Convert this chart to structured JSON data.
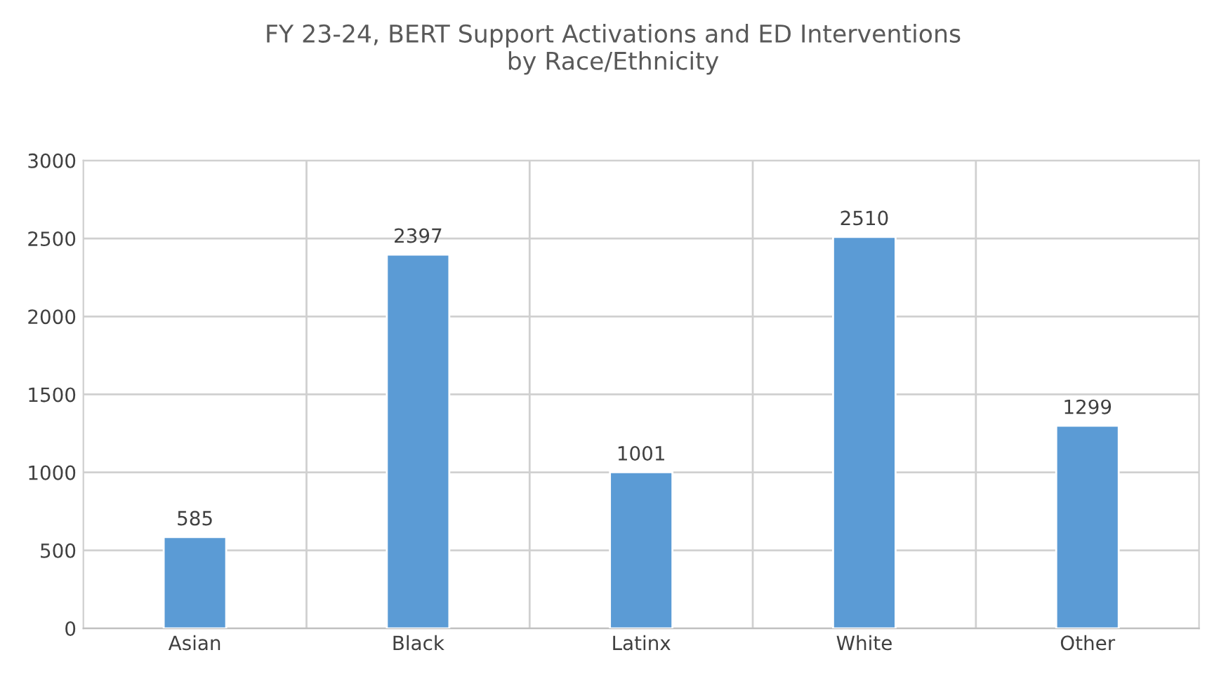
{
  "chart_data": {
    "type": "bar",
    "title": "FY 23-24, BERT Support Activations and ED Interventions\nby Race/Ethnicity",
    "categories": [
      "Asian",
      "Black",
      "Latinx",
      "White",
      "Other"
    ],
    "values": [
      585,
      2397,
      1001,
      2510,
      1299
    ],
    "color": "#5b9bd5",
    "ylim": [
      0,
      3000
    ],
    "yticks": [
      0,
      500,
      1000,
      1500,
      2000,
      2500,
      3000
    ],
    "grid": true,
    "data_labels": true
  }
}
